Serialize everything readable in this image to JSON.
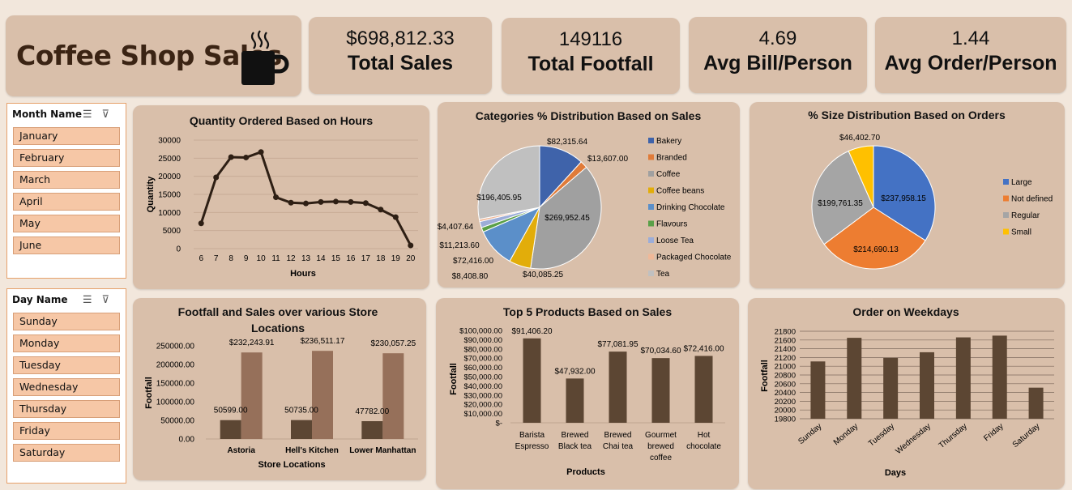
{
  "header": {
    "title": "Coffee Shop Sales",
    "icon": "coffee-cup-icon"
  },
  "kpis": [
    {
      "value": "$698,812.33",
      "label": "Total Sales"
    },
    {
      "value": "149116",
      "label": "Total Footfall"
    },
    {
      "value": "4.69",
      "label": "Avg Bill/Person"
    },
    {
      "value": "1.44",
      "label": "Avg Order/Person"
    }
  ],
  "slicers": {
    "month": {
      "title": "Month Name",
      "items": [
        "January",
        "February",
        "March",
        "April",
        "May",
        "June"
      ]
    },
    "day": {
      "title": "Day Name",
      "items": [
        "Sunday",
        "Monday",
        "Tuesday",
        "Wednesday",
        "Thursday",
        "Friday",
        "Saturday"
      ]
    }
  },
  "colors": {
    "panel": "#d9bfaa",
    "bar_dark": "#5c4633",
    "bar_light": "#96705a",
    "line": "#2e1f14"
  },
  "chart_data": [
    {
      "type": "line",
      "title": "Quantity Ordered Based on Hours",
      "xlabel": "Hours",
      "ylabel": "Quantity",
      "x": [
        6,
        7,
        8,
        9,
        10,
        11,
        12,
        13,
        14,
        15,
        16,
        17,
        18,
        19,
        20
      ],
      "values": [
        7000,
        19700,
        25300,
        25200,
        26700,
        14200,
        12700,
        12500,
        12900,
        13000,
        12900,
        12600,
        10800,
        8700,
        900
      ],
      "yticks": [
        "0",
        "5000",
        "10000",
        "15000",
        "20000",
        "25000",
        "30000"
      ],
      "ylim": [
        0,
        30000
      ]
    },
    {
      "type": "pie",
      "title": "Categories % Distribution Based on Sales",
      "categories": [
        "Bakery",
        "Branded",
        "Coffee",
        "Coffee beans",
        "Drinking Chocolate",
        "Flavours",
        "Loose Tea",
        "Packaged Chocolate",
        "Tea"
      ],
      "values": [
        82315.64,
        13607.0,
        269952.45,
        40085.25,
        72416.0,
        8408.8,
        11213.6,
        4407.64,
        196405.95
      ],
      "labels": [
        "$82,315.64",
        "$13,607.00",
        "$269,952.45",
        "$40,085.25",
        "$72,416.00",
        "$8,408.80",
        "$11,213.60",
        "$4,407.64",
        "$196,405.95"
      ],
      "colors": [
        "#3f63aa",
        "#e07b39",
        "#a0a0a0",
        "#e2ad0a",
        "#5b8fc9",
        "#5aa048",
        "#9cadd8",
        "#f0b898",
        "#c0c0c0"
      ],
      "legend": "right"
    },
    {
      "type": "pie",
      "title": "% Size Distribution Based on Orders",
      "categories": [
        "Large",
        "Not defined",
        "Regular",
        "Small"
      ],
      "values": [
        237958.15,
        214690.13,
        199761.35,
        46402.7
      ],
      "labels": [
        "$237,958.15",
        "$214,690.13",
        "$199,761.35",
        "$46,402.70"
      ],
      "colors": [
        "#4472c4",
        "#ed7d31",
        "#a5a5a5",
        "#ffc000"
      ],
      "legend": "right"
    },
    {
      "type": "bar",
      "title": "Footfall and Sales over various Store Locations",
      "xlabel": "Store Locations",
      "ylabel": "Footfall",
      "categories": [
        "Astoria",
        "Hell's Kitchen",
        "Lower Manhattan"
      ],
      "series": [
        {
          "values": [
            50599,
            50735,
            47782
          ],
          "labels": [
            "50599.00",
            "50735.00",
            "47782.00"
          ]
        },
        {
          "values": [
            232243.91,
            236511.17,
            230057.25
          ],
          "labels": [
            "$232,243.91",
            "$236,511.17",
            "$230,057.25"
          ]
        }
      ],
      "yticks": [
        "0.00",
        "50000.00",
        "100000.00",
        "150000.00",
        "200000.00",
        "250000.00"
      ],
      "ylim": [
        0,
        250000
      ]
    },
    {
      "type": "bar",
      "title": "Top 5 Products Based on Sales",
      "xlabel": "Products",
      "ylabel": "Footfall",
      "categories": [
        [
          "Barista",
          "Espresso"
        ],
        [
          "Brewed",
          "Black tea"
        ],
        [
          "Brewed",
          "Chai tea"
        ],
        [
          "Gourmet",
          "brewed",
          "coffee"
        ],
        [
          "Hot",
          "chocolate"
        ]
      ],
      "values": [
        91406.2,
        47932.0,
        77081.95,
        70034.6,
        72416.0
      ],
      "labels": [
        "$91,406.20",
        "$47,932.00",
        "$77,081.95",
        "$70,034.60",
        "$72,416.00"
      ],
      "yticks": [
        "$-",
        "$10,000.00",
        "$20,000.00",
        "$30,000.00",
        "$40,000.00",
        "$50,000.00",
        "$60,000.00",
        "$70,000.00",
        "$80,000.00",
        "$90,000.00",
        "$100,000.00"
      ],
      "ylim": [
        0,
        100000
      ]
    },
    {
      "type": "bar",
      "title": "Order on Weekdays",
      "xlabel": "Days",
      "ylabel": "Footfall",
      "categories": [
        "Sunday",
        "Monday",
        "Tuesday",
        "Wednesday",
        "Thursday",
        "Friday",
        "Saturday"
      ],
      "values": [
        21110,
        21650,
        21190,
        21320,
        21660,
        21700,
        20510
      ],
      "yticks": [
        "19800",
        "20000",
        "20200",
        "20400",
        "20600",
        "20800",
        "21000",
        "21200",
        "21400",
        "21600",
        "21800"
      ],
      "ylim": [
        19800,
        21800
      ]
    }
  ]
}
